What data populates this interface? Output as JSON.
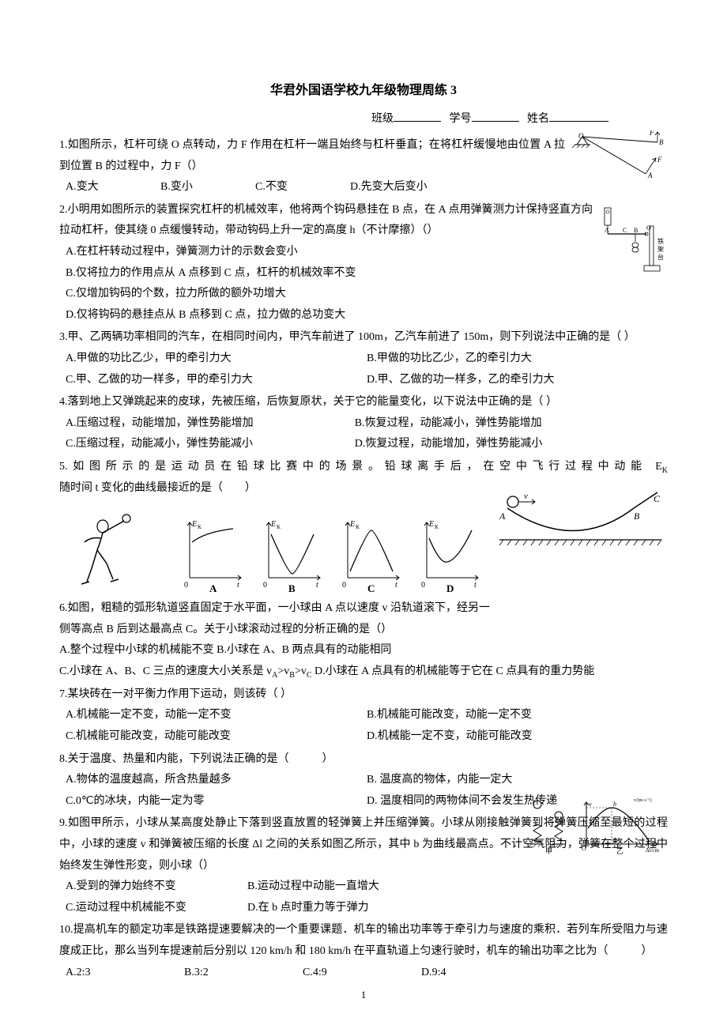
{
  "title": "华君外国语学校九年级物理周练 3",
  "header": {
    "class_label": "班级",
    "id_label": "学号",
    "name_label": "姓名"
  },
  "q1": {
    "text": "1.如图所示，杠杆可绕 O 点转动，力 F 作用在杠杆一端且始终与杠杆垂直；在将杠杆缓慢地由位置 A 拉到位置 B 的过程中，力 F（）",
    "a": "A.变大",
    "b": "B.变小",
    "c": "C.不变",
    "d": "D.先变大后变小"
  },
  "q2": {
    "text": "2.小明用如图所示的装置探究杠杆的机械效率，他将两个钩码悬挂在 B 点，在 A 点用弹簧测力计保持竖直方向拉动杠杆，使其绕 0 点缓慢转动，带动钩码上升一定的高度 h（不计摩擦）（）",
    "a": "A.在杠杆转动过程中，弹簧测力计的示数会变小",
    "b": "B.仅将拉力的作用点从 A 点移到 C 点，杠杆的机械效率不变",
    "c": "C.仅增加钩码的个数，拉力所做的额外功增大",
    "d": "D.仅将钩码的悬挂点从 B 点移到 C 点，拉力做的总功变大"
  },
  "q3": {
    "text": "3.甲、乙两辆功率相同的汽车，在相同时间内，甲汽车前进了 100m，乙汽车前进了 150m，则下列说法中正确的是（ ）",
    "a": "A.甲做的功比乙少，甲的牵引力大",
    "b": "B.甲做的功比乙少，乙的牵引力大",
    "c": "C.甲、乙做的功一样多，甲的牵引力大",
    "d": "D.甲、乙做的功一样多，乙的牵引力大"
  },
  "q4": {
    "text": "4.落到地上又弹跳起来的皮球，先被压缩，后恢复原状，关于它的能量变化，以下说法中正确的是（ ）",
    "a": "A.压缩过程，动能增加，弹性势能增加",
    "b": "B.恢复过程，动能减小，弹性势能增加",
    "c": "C.压缩过程，动能减小，弹性势能减小",
    "d": "D.恢复过程，动能增加，弹性势能减小"
  },
  "q5": {
    "text": "5.如图所示的是运动员在铅球比赛中的场景。铅球离手后，在空中飞行过程中动能 E<sub>K</sub> 随时间 t 变化的曲线最接近的是（　　）",
    "labels": {
      "a": "A",
      "b": "B",
      "c": "C",
      "d": "D"
    },
    "axis_y": "E",
    "axis_sub": "K",
    "axis_x": "t"
  },
  "q6": {
    "text": "6.如图，粗糙的弧形轨道竖直固定于水平面，一小球由 A 点以速度 v 沿轨道滚下，经另一侧等高点 B 后到达最高点 C。关于小球滚动过程的分析正确的是（）",
    "a": "A.整个过程中小球的机械能不变",
    "b": "B.小球在 A、B 两点具有的动能相同",
    "c": "C.小球在 A、B、C 三点的速度大小关系是 v<sub>A</sub>>v<sub>B</sub>>v<sub>C</sub>",
    "d": "D.小球在 A 点具有的机械能等于它在 C 点具有的重力势能",
    "fig": {
      "a": "A",
      "b": "B",
      "c": "C",
      "v": "v"
    }
  },
  "q7": {
    "text": "7.某块砖在一对平衡力作用下运动，则该砖（ ）",
    "a": "A.机械能一定不变，动能一定不变",
    "b": "B.机械能可能改变，动能一定不变",
    "c": "C.机械能可能改变，动能可能改变",
    "d": "D.机械能一定不变，动能可能改变"
  },
  "q8": {
    "text": "8.关于温度、热量和内能，下列说法正确的是（　　　）",
    "a": "A.物体的温度越高，所含热量越多",
    "b": "B. 温度高的物体，内能一定大",
    "c": "C.0℃的冰块，内能一定为零",
    "d": "D. 温度相同的两物体间不会发生热传递"
  },
  "q9": {
    "text": "9.如图甲所示，小球从某高度处静止下落到竖直放置的轻弹簧上并压缩弹簧。小球从刚接触弹簧到将弹簧压缩至最短的过程中，小球的速度 v 和弹簧被压缩的长度 Δl 之间的关系如图乙所示，其中 b 为曲线最高点。不计空气阻力，弹簧在整个过程中始终发生弹性形变，则小球（）",
    "a": "A.受到的弹力始终不变",
    "b": "B.运动过程中动能一直增大",
    "c": "C.运动过程中机械能不变",
    "d": "D.在 b 点时重力等于弹力",
    "fig": {
      "jia": "甲",
      "yi": "乙",
      "v": "v",
      "dl": "Δl/cm",
      "vu": "v/(m·s⁻¹)",
      "b": "b"
    }
  },
  "q10": {
    "text": "10.提高机车的额定功率是铁路提速要解决的一个重要课题．机车的输出功率等于牵引力与速度的乘积．若列车所受阻力与速度成正比，那么当列车提速前后分别以 120 km/h 和 180 km/h 在平直轨道上匀速行驶时，机车的输出功率之比为（　　　）",
    "a": "A.2:3",
    "b": "B.3:2",
    "c": "C.4:9",
    "d": "D.9:4"
  },
  "page_number": "1",
  "colors": {
    "text": "#000000",
    "bg": "#ffffff",
    "line": "#000000"
  }
}
